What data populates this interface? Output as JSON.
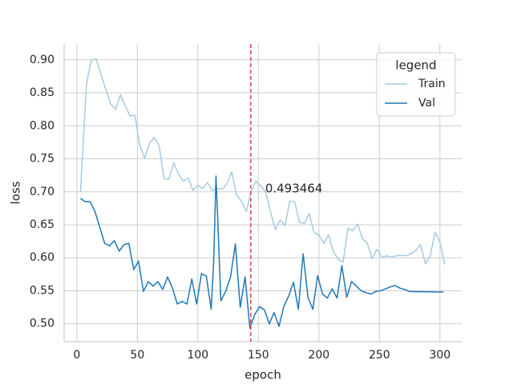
{
  "chart_data": {
    "type": "line",
    "xlabel": "epoch",
    "ylabel": "loss",
    "xlim": [
      -10.5,
      318
    ],
    "ylim": [
      0.473,
      0.924
    ],
    "xticks": [
      0,
      50,
      100,
      150,
      200,
      250,
      300
    ],
    "yticks": [
      {
        "value": 0.5,
        "label": "0.50"
      },
      0.55,
      {
        "value": 0.6,
        "label": "0.60"
      },
      0.65,
      {
        "value": 0.7,
        "label": "0.70"
      },
      0.75,
      {
        "value": 0.8,
        "label": "0.80"
      },
      0.85,
      {
        "value": 0.9,
        "label": "0.90"
      }
    ],
    "grid": true,
    "legend": {
      "title": "legend",
      "position": "upper right"
    },
    "vline_x": 143.7,
    "vline_color": "#d0464f",
    "annotation": "0.493464",
    "series": [
      {
        "name": "Train",
        "color": "#a6cbe3",
        "x": [
          3,
          8,
          12,
          16,
          22,
          28,
          32,
          36,
          40,
          44,
          48,
          52,
          56,
          60,
          64,
          68,
          72,
          76,
          80,
          84,
          88,
          92,
          96,
          100,
          104,
          108,
          112,
          116,
          120,
          124,
          128,
          132,
          136,
          140,
          144,
          148,
          152,
          156,
          160,
          164,
          168,
          172,
          176,
          180,
          184,
          188,
          192,
          196,
          200,
          204,
          208,
          212,
          216,
          220,
          224,
          228,
          232,
          236,
          240,
          244,
          248,
          252,
          256,
          260,
          264,
          268,
          272,
          276,
          280,
          284,
          288,
          292,
          296,
          300,
          304
        ],
        "values": [
          0.7,
          0.864,
          0.9,
          0.901,
          0.866,
          0.833,
          0.825,
          0.847,
          0.83,
          0.815,
          0.816,
          0.77,
          0.751,
          0.774,
          0.782,
          0.77,
          0.72,
          0.719,
          0.744,
          0.727,
          0.716,
          0.721,
          0.702,
          0.71,
          0.705,
          0.714,
          0.702,
          0.705,
          0.704,
          0.712,
          0.73,
          0.695,
          0.686,
          0.67,
          0.7,
          0.716,
          0.709,
          0.7,
          0.67,
          0.643,
          0.657,
          0.649,
          0.686,
          0.685,
          0.654,
          0.652,
          0.667,
          0.638,
          0.635,
          0.622,
          0.635,
          0.609,
          0.598,
          0.593,
          0.645,
          0.641,
          0.651,
          0.629,
          0.622,
          0.599,
          0.613,
          0.601,
          0.603,
          0.601,
          0.603,
          0.604,
          0.603,
          0.606,
          0.611,
          0.62,
          0.591,
          0.603,
          0.639,
          0.624,
          0.59
        ]
      },
      {
        "name": "Val",
        "color": "#1f77b4",
        "x": [
          3,
          7,
          11,
          15,
          19,
          23,
          27,
          31,
          35,
          39,
          43,
          47,
          51,
          55,
          59,
          63,
          67,
          71,
          75,
          79,
          83,
          87,
          91,
          95,
          99,
          103,
          107,
          111,
          113,
          115,
          119,
          123,
          127,
          131,
          135,
          139,
          143,
          147,
          151,
          155,
          159,
          163,
          167,
          171,
          175,
          179,
          183,
          187,
          191,
          195,
          199,
          203,
          207,
          211,
          215,
          219,
          223,
          227,
          231,
          235,
          239,
          243,
          247,
          251,
          255,
          259,
          263,
          267,
          271,
          275,
          303
        ],
        "values": [
          0.69,
          0.685,
          0.685,
          0.67,
          0.646,
          0.622,
          0.618,
          0.626,
          0.61,
          0.62,
          0.622,
          0.582,
          0.595,
          0.549,
          0.564,
          0.557,
          0.564,
          0.552,
          0.571,
          0.554,
          0.53,
          0.534,
          0.53,
          0.568,
          0.53,
          0.576,
          0.572,
          0.522,
          0.591,
          0.724,
          0.535,
          0.549,
          0.571,
          0.621,
          0.525,
          0.571,
          0.493464,
          0.514,
          0.526,
          0.521,
          0.5,
          0.517,
          0.496,
          0.526,
          0.542,
          0.563,
          0.522,
          0.606,
          0.54,
          0.522,
          0.573,
          0.545,
          0.539,
          0.553,
          0.539,
          0.588,
          0.54,
          0.564,
          0.557,
          0.55,
          0.547,
          0.545,
          0.549,
          0.55,
          0.553,
          0.556,
          0.558,
          0.554,
          0.552,
          0.549,
          0.548
        ]
      }
    ]
  }
}
